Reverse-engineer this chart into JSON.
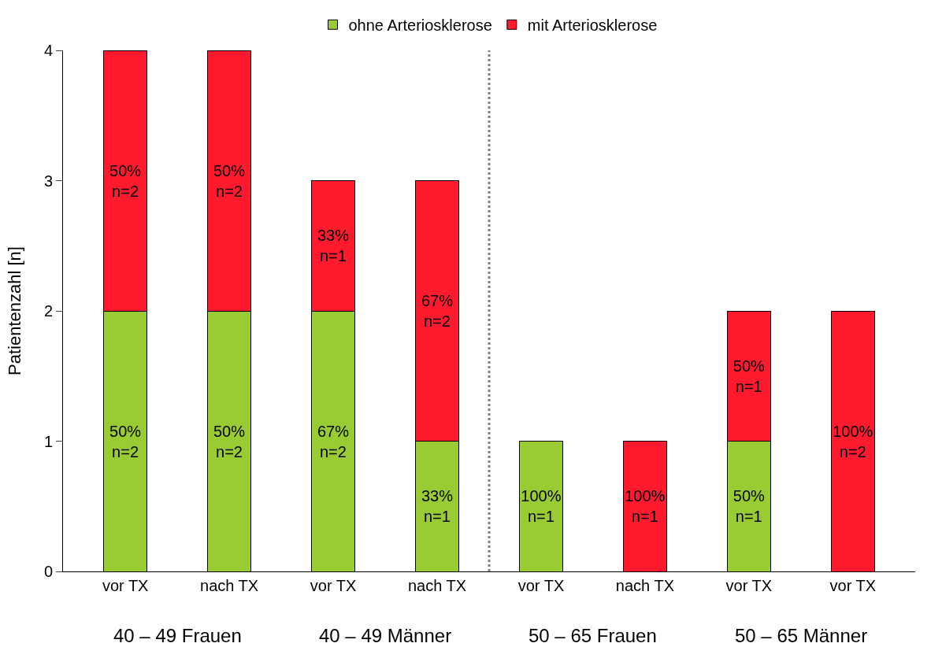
{
  "chart_data": {
    "type": "bar",
    "stacked": true,
    "ylabel": "Patientenzahl [n]",
    "categories": [
      "vor TX",
      "nach TX",
      "vor TX",
      "nach TX",
      "vor TX",
      "nach TX",
      "vor TX",
      "vor TX"
    ],
    "series": [
      {
        "name": "ohne Arteriosklerose",
        "color": "#99cc33",
        "values": [
          2,
          2,
          2,
          1,
          1,
          null,
          1,
          null
        ],
        "value_labels": [
          "50%\nn=2",
          "50%\nn=2",
          "67%\nn=2",
          "33%\nn=1",
          "100%\nn=1",
          null,
          "50%\nn=1",
          null
        ]
      },
      {
        "name": "mit Arteriosklerose",
        "color": "#ff1a2e",
        "values": [
          2,
          2,
          1,
          2,
          null,
          1,
          1,
          2
        ],
        "value_labels": [
          "50%\nn=2",
          "50%\nn=2",
          "33%\nn=1",
          "67%\nn=2",
          null,
          "100%\nn=1",
          "50%\nn=1",
          "100%\nn=2"
        ]
      }
    ],
    "annotations": [
      "40 – 49 Frauen",
      "40 – 49 Männer",
      "50 – 65 Frauen",
      "50 – 65 Männer"
    ],
    "ylim": [
      0,
      4
    ],
    "yticks": [
      0,
      1,
      2,
      3,
      4
    ],
    "grid": false,
    "legend": "top"
  }
}
